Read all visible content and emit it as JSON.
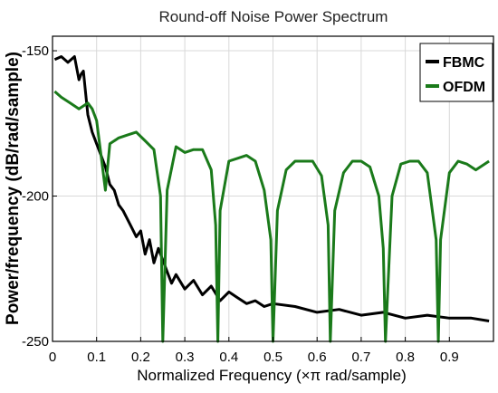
{
  "chart_data": {
    "type": "line",
    "title": "Round-off Noise Power Spectrum",
    "xlabel": "Normalized Frequency (×π rad/sample)",
    "ylabel": "Power/frequency (dB/rad/sample)",
    "xlim": [
      0,
      1
    ],
    "ylim": [
      -250,
      -145
    ],
    "x_ticks": [
      0,
      0.1,
      0.2,
      0.3,
      0.4,
      0.5,
      0.6,
      0.7,
      0.8,
      0.9
    ],
    "x_tick_labels": [
      "0",
      "0.1",
      "0.2",
      "0.3",
      "0.4",
      "0.5",
      "0.6",
      "0.7",
      "0.8",
      "0.9"
    ],
    "y_ticks": [
      -150,
      -200,
      -250
    ],
    "y_tick_labels": [
      "-150",
      "-200",
      "-250"
    ],
    "grid": true,
    "legend_position": "top-right",
    "series": [
      {
        "name": "FBMC",
        "color": "#000000",
        "x": [
          0.005,
          0.02,
          0.035,
          0.05,
          0.06,
          0.065,
          0.07,
          0.08,
          0.09,
          0.1,
          0.11,
          0.115,
          0.12,
          0.13,
          0.14,
          0.15,
          0.16,
          0.17,
          0.18,
          0.19,
          0.2,
          0.21,
          0.22,
          0.23,
          0.24,
          0.25,
          0.26,
          0.27,
          0.28,
          0.3,
          0.32,
          0.34,
          0.36,
          0.38,
          0.4,
          0.42,
          0.44,
          0.46,
          0.48,
          0.5,
          0.55,
          0.6,
          0.65,
          0.7,
          0.75,
          0.8,
          0.85,
          0.9,
          0.95,
          0.99
        ],
        "y": [
          -153,
          -152,
          -154,
          -152,
          -160,
          -158,
          -157,
          -172,
          -178,
          -182,
          -186,
          -188,
          -190,
          -196,
          -198,
          -203,
          -205,
          -208,
          -211,
          -214,
          -212,
          -220,
          -215,
          -223,
          -218,
          -222,
          -226,
          -230,
          -227,
          -232,
          -229,
          -234,
          -231,
          -236,
          -233,
          -235,
          -237,
          -236,
          -238,
          -237,
          -238,
          -240,
          -239,
          -241,
          -240,
          -242,
          -241,
          -242,
          -242,
          -243
        ]
      },
      {
        "name": "OFDM",
        "color": "#1a7a1a",
        "x": [
          0.005,
          0.02,
          0.04,
          0.06,
          0.08,
          0.09,
          0.1,
          0.11,
          0.12,
          0.13,
          0.15,
          0.17,
          0.19,
          0.21,
          0.23,
          0.245,
          0.25,
          0.26,
          0.28,
          0.3,
          0.32,
          0.34,
          0.36,
          0.37,
          0.375,
          0.38,
          0.4,
          0.42,
          0.44,
          0.46,
          0.48,
          0.495,
          0.5,
          0.51,
          0.53,
          0.55,
          0.57,
          0.59,
          0.61,
          0.625,
          0.63,
          0.64,
          0.66,
          0.68,
          0.7,
          0.72,
          0.74,
          0.75,
          0.755,
          0.77,
          0.79,
          0.81,
          0.83,
          0.85,
          0.87,
          0.875,
          0.88,
          0.9,
          0.92,
          0.94,
          0.96,
          0.99
        ],
        "y": [
          -164,
          -166,
          -168,
          -170,
          -168,
          -170,
          -174,
          -186,
          -198,
          -182,
          -180,
          -179,
          -178,
          -181,
          -184,
          -200,
          -250,
          -198,
          -183,
          -185,
          -184,
          -184,
          -191,
          -210,
          -250,
          -205,
          -188,
          -187,
          -186,
          -188,
          -198,
          -215,
          -250,
          -205,
          -191,
          -188,
          -188,
          -188,
          -193,
          -210,
          -250,
          -205,
          -192,
          -188,
          -188,
          -190,
          -200,
          -218,
          -250,
          -200,
          -189,
          -188,
          -188,
          -192,
          -215,
          -250,
          -215,
          -192,
          -188,
          -189,
          -191,
          -188
        ]
      }
    ]
  }
}
